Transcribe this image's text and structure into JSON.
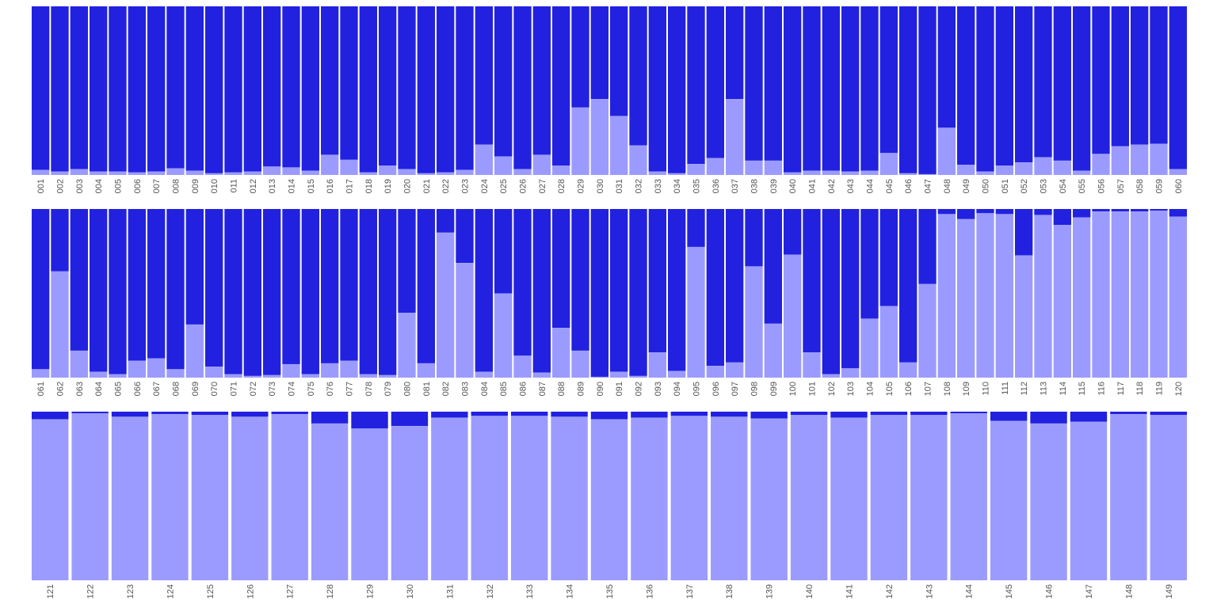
{
  "chart_data": {
    "type": "bar",
    "stacked": true,
    "normalized": true,
    "axis_ticks_visible": true,
    "y_axis_visible": false,
    "grid": false,
    "legend": "none",
    "colors": {
      "lower": "#9b9bff",
      "upper": "#2121df"
    },
    "panels": [
      {
        "categories": [
          "001",
          "002",
          "003",
          "004",
          "005",
          "006",
          "007",
          "008",
          "009",
          "010",
          "011",
          "012",
          "013",
          "014",
          "015",
          "016",
          "017",
          "018",
          "019",
          "020",
          "021",
          "022",
          "023",
          "024",
          "025",
          "026",
          "027",
          "028",
          "029",
          "030",
          "031",
          "032",
          "033",
          "034",
          "035",
          "036",
          "037",
          "038",
          "039",
          "040",
          "041",
          "042",
          "043",
          "044",
          "045",
          "046",
          "047",
          "048",
          "049",
          "050",
          "051",
          "052",
          "053",
          "054",
          "055",
          "056",
          "057",
          "058",
          "059",
          "060"
        ],
        "lower_share": [
          0.03,
          0.02,
          0.035,
          0.02,
          0.02,
          0.015,
          0.02,
          0.04,
          0.025,
          0.01,
          0.015,
          0.02,
          0.05,
          0.045,
          0.025,
          0.12,
          0.09,
          0.015,
          0.055,
          0.035,
          0.01,
          0.015,
          0.03,
          0.18,
          0.11,
          0.035,
          0.12,
          0.055,
          0.4,
          0.45,
          0.35,
          0.175,
          0.02,
          0.01,
          0.065,
          0.1,
          0.45,
          0.085,
          0.085,
          0.015,
          0.025,
          0.025,
          0.02,
          0.025,
          0.13,
          0.01,
          0.005,
          0.28,
          0.06,
          0.02,
          0.055,
          0.075,
          0.105,
          0.085,
          0.025,
          0.125,
          0.17,
          0.18,
          0.185,
          0.035
        ]
      },
      {
        "categories": [
          "061",
          "062",
          "063",
          "064",
          "065",
          "066",
          "067",
          "068",
          "069",
          "070",
          "071",
          "072",
          "073",
          "074",
          "075",
          "076",
          "077",
          "078",
          "079",
          "080",
          "081",
          "082",
          "083",
          "084",
          "085",
          "086",
          "087",
          "088",
          "089",
          "090",
          "091",
          "092",
          "093",
          "094",
          "095",
          "096",
          "097",
          "098",
          "099",
          "100",
          "101",
          "102",
          "103",
          "104",
          "105",
          "106",
          "107",
          "108",
          "109",
          "110",
          "111",
          "112",
          "113",
          "114",
          "115",
          "116",
          "117",
          "118",
          "119",
          "120"
        ],
        "lower_share": [
          0.05,
          0.63,
          0.16,
          0.035,
          0.02,
          0.1,
          0.115,
          0.05,
          0.315,
          0.065,
          0.02,
          0.01,
          0.015,
          0.08,
          0.02,
          0.085,
          0.1,
          0.02,
          0.015,
          0.385,
          0.085,
          0.86,
          0.68,
          0.035,
          0.5,
          0.13,
          0.03,
          0.295,
          0.16,
          0.005,
          0.035,
          0.01,
          0.15,
          0.04,
          0.775,
          0.07,
          0.09,
          0.66,
          0.32,
          0.73,
          0.15,
          0.02,
          0.055,
          0.35,
          0.425,
          0.09,
          0.555,
          0.97,
          0.94,
          0.975,
          0.97,
          0.725,
          0.965,
          0.905,
          0.95,
          0.985,
          0.985,
          0.985,
          0.99,
          0.955
        ]
      },
      {
        "categories": [
          "121",
          "122",
          "123",
          "124",
          "125",
          "126",
          "127",
          "128",
          "129",
          "130",
          "131",
          "132",
          "133",
          "134",
          "135",
          "136",
          "137",
          "138",
          "139",
          "140",
          "141",
          "142",
          "143",
          "144",
          "145",
          "146",
          "147",
          "148",
          "149"
        ],
        "lower_share": [
          0.955,
          0.99,
          0.97,
          0.985,
          0.98,
          0.97,
          0.985,
          0.93,
          0.9,
          0.915,
          0.965,
          0.975,
          0.975,
          0.97,
          0.955,
          0.965,
          0.975,
          0.97,
          0.96,
          0.98,
          0.965,
          0.98,
          0.98,
          0.99,
          0.945,
          0.93,
          0.94,
          0.985,
          0.98
        ]
      }
    ]
  }
}
